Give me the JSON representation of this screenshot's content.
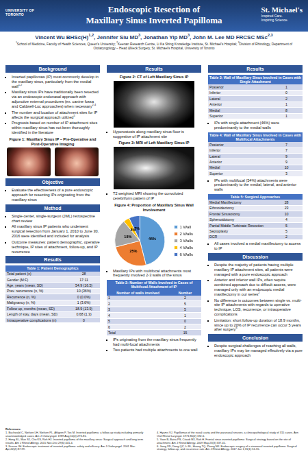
{
  "header": {
    "title_lines": [
      "Endoscopic Resection of",
      "Maxillary Sinus Inverted Papilloma"
    ],
    "left_logo": [
      "UNIVERSITY OF",
      "TORONTO"
    ],
    "right_logo": "St. Michael's",
    "right_tagline": [
      "Inspired Care.",
      "Inspiring Science."
    ],
    "authors": [
      {
        "name": "Vincent Wu BHSc(H)",
        "sup": "1,2",
        "after": ", "
      },
      {
        "name": "Jennifer Siu MD",
        "sup": "3",
        "after": ", "
      },
      {
        "name": "Jonathan Yip MD",
        "sup": "3",
        "after": ", "
      },
      {
        "name": "John M. Lee MD FRCSC MSc",
        "sup": "2,3"
      }
    ],
    "affiliations": [
      {
        "sup": "1",
        "text": "School of Medicine, Faculty of Health Sciences, Queen's University; "
      },
      {
        "sup": "2",
        "text": "Keenan Research Centre, Li Ka Shing Knowledge Institute, St. Michael's Hospital; "
      },
      {
        "sup": "3",
        "text": "Division of Rhinology, Department of Otolaryngology – Head &Neck Surgery, St. Michael's Hospital, University of Toronto"
      }
    ]
  },
  "background": {
    "title": "Background",
    "bullets": [
      {
        "text": "Inverted papillomas (IP) most commonly develop in the maxillary sinus, particularly from the medial wall",
        "sup": "1,2"
      },
      {
        "text": "Maxillary sinus IPs have traditionally been resected via an endoscopic endonasal approach with adjunctive external procedures (ex. canine fossa and Caldwell-Luc approaches) when necessary",
        "sup": "2-4"
      },
      {
        "text": "The number and location of attachment sites for IP affects the surgical approach utilized",
        "sup": "5"
      },
      {
        "text": "Prognosis based on number of IP attachment sites within maxillary sinus has not been thoroughly identified in the literature"
      }
    ]
  },
  "figure1": {
    "caption": "Figure 1: Maxillary Sinus IP – Pre-Operative and Post-Operative Imaging"
  },
  "objective": {
    "title": "Objective",
    "bullets": [
      {
        "text": "Evaluate the effectiveness of a pure endoscopic approach for resecting IPs originating from the maxillary sinus"
      }
    ]
  },
  "method": {
    "title": "Method",
    "bullets": [
      {
        "text": "Single-center, single-surgeon (JML) retrospective chart review"
      },
      {
        "text": "All maxillary sinus IP patients who underwent surgical resection from January 1, 2010 to June 30, 2016 were identified and included for analysis"
      },
      {
        "text": "Outcome measures: patient demographic, operative technique, IP sites of attachment, follow-up, and IP recurrence"
      }
    ]
  },
  "results_demographics": {
    "title": "Results",
    "table1": {
      "caption": "Table 1: Patient Demographics",
      "rows": [
        [
          "Total patient (n)",
          28
        ],
        [
          "Gender (M:F)",
          "17:11"
        ],
        [
          "Age, years (mean, SD)",
          "54.9 (16.5)"
        ],
        [
          "Prev. recurrence (n, %)",
          "10 (36%)"
        ],
        [
          "Recurrence (n, %)",
          "0 (0.0%)"
        ],
        [
          "Malignancy (n, %)",
          "1 (3.6%)"
        ],
        [
          "Follow up, months (mean, SD)",
          "18.9 (13.9)"
        ],
        [
          "Length of stay, days (mean, SD)",
          "0.68 (1.3)"
        ],
        [
          "Intraoperative complications (n)",
          0
        ]
      ]
    }
  },
  "results_imaging": {
    "title": "Results",
    "figure2": {
      "caption": "Figure 2: CT of Left Maxillary Sinus IP",
      "bullets": [
        {
          "text": "Hyperostosis along maxillary sinus floor is suggestive of IP attachment site"
        }
      ]
    },
    "figure3": {
      "caption": "Figure 3: MRI of Left Maxillary Sinus IP",
      "bullets": [
        {
          "text": "T2 weighted MRI showing the convoluted cerebriform pattern of IP"
        }
      ]
    },
    "figure4_bullets": [
      {
        "text": "Maxillary IPs with multifocal attachments most frequently involved 2-3 walls of the sinus"
      }
    ],
    "table2": {
      "caption": "Table 2: Number of Walls Involved in Cases of Multifocal Attachment of IP",
      "header": [
        "Number of walls involved",
        "Number"
      ],
      "rows": [
        [
          "1",
          2
        ],
        [
          "2",
          5
        ],
        [
          "3",
          5
        ],
        [
          "4",
          1
        ],
        [
          "5",
          0
        ],
        [
          "6",
          2
        ],
        [
          "Total",
          15
        ]
      ]
    },
    "bullets": [
      {
        "text": "IPs originating from the maxillary sinus frequently had multi-focal attachments"
      },
      {
        "text": "Two patients had multiple attachments to one wall"
      }
    ]
  },
  "chart_data": {
    "type": "pie",
    "title": "Figure 4: Proportion of Maxillary Sinus Wall Involvement",
    "categories": [
      "1 Wall",
      "2 Walls",
      "3 Walls",
      "4 Walls",
      "6 Walls"
    ],
    "values": [
      46,
      25,
      18,
      4,
      7
    ],
    "value_labels": [
      "46%",
      "25%",
      "18%",
      "4%",
      "7%"
    ],
    "colors": [
      "#5b9bd5",
      "#ed7d31",
      "#a5a5a5",
      "#ffc000",
      "#4472c4"
    ],
    "legend": "right",
    "data_labels": true
  },
  "results_walls": {
    "title": "Results",
    "table3": {
      "caption": "Table 3: Wall of Maxillary Sinus Involved in Cases with Single Attachment",
      "rows": [
        [
          "Posterior",
          1
        ],
        [
          "Inferior",
          0
        ],
        [
          "Lateral",
          2
        ],
        [
          "Anterior",
          1
        ],
        [
          "Medial",
          8
        ],
        [
          "Superior",
          1
        ]
      ]
    },
    "table3_bullets": [
      {
        "text": "IPs with single attachment (46%) were predominantly to the medial walls"
      }
    ],
    "table4": {
      "caption": "Table 4: Wall of Maxillary Sinus Involved in Cases with Multifocal Attachments",
      "rows": [
        [
          "Posterior",
          7
        ],
        [
          "Inferior",
          7
        ],
        [
          "Lateral",
          9
        ],
        [
          "Anterior",
          9
        ],
        [
          "Medial",
          10
        ],
        [
          "Superior",
          3
        ]
      ]
    },
    "table4_bullets": [
      {
        "text": "IPs with multifocal (54%) attachments were predominantly to the medial, lateral, and anterior walls"
      }
    ],
    "table5": {
      "caption": "Table 5: Surgical Approaches",
      "rows": [
        [
          "Medial Maxillectomy",
          28
        ],
        [
          "Ethmoidectomy",
          23
        ],
        [
          "Frontal Sinusotomy",
          10
        ],
        [
          "Sphenoidotomy",
          4
        ],
        [
          "Partial Middle Turbinate Resection",
          5
        ],
        [
          "Septoplasty",
          5
        ],
        [
          "DCR",
          2
        ]
      ]
    },
    "table5_bullets": [
      {
        "text": "All cases involved a medial maxillectomy to access to IP"
      }
    ]
  },
  "discussion": {
    "title": "Discussion",
    "bullets": [
      {
        "text": "Despite the majority of patients having multiple maxillary IP attachment sites, all patients were managed with a pure endoscopic approach"
      },
      {
        "text": "Anterior and inferior wall IPs, often require combined approach due to difficult access, were managed only with an endoscopic medial maxillectomy in our series",
        "sup": "2"
      },
      {
        "text": "No difference in outcomes between single vs. multi-site IP attachments with regards to operative technique, LOS, recurrence, or intraoperative complications"
      },
      {
        "text": "Limitation: short follow-up duration of 18.9 months, since up to 20% of IP recurrence can occur 5 years after surgery",
        "sup": "6"
      }
    ]
  },
  "conclusion": {
    "title": "Conclusion",
    "bullets": [
      {
        "text": "Despite surgical challenges of reaching all walls, maxillary IPs may be managed effectively via a pure endoscopic approach"
      }
    ]
  },
  "references": {
    "heading": "References:",
    "items": [
      "1. Buchwald C, Nielsen LH, Nielsen PL, Ahlgren P, Tos M. Inverted papilloma: a follow-up study including primarily unacknowledged cases. Am J Otolaryngol. 1989 Aug;10(4):273-81.",
      "2. Hong SL, Mun SJ, Cho KS, Roh HJ. Inverted papilloma of the maxillary sinus: Surgical approach and long-term results. Am J Rhinol Allergy. 2015 Nov-Dec;29(6):441-4.",
      "3. Krouse JH. Endoscopic treatment of inverted papilloma: safety and efficacy. Am J Otolaryngol. 2001 Mar-Apr;22(2):87-99.",
      "4. Hyams VJ. Papillomas of the nasal cavity and the paranasal sinuses. a clinicopathological study of 315 cases. Ann Otol Rhinol Laryngol. 1971;80(2):192-6.",
      "5. Yoon B, Batra PS, Citardi MJ, Roh H. Frontal sinus inverted papilloma: Surgical strategy based on the site of attachment. Am J Rhinol Allergy. 2009 May;23(3):337-41.",
      "6. Jiang XD, Dong QZ, Li SL, Huang TQ, Zhang NK. Endoscopic surgery of a sinonasal inverted papilloma: Surgical strategy, follow-up, and recurrence rate. Am J Rhinol Allergy. 2017 Jan 1;31(1):51-55."
    ]
  }
}
